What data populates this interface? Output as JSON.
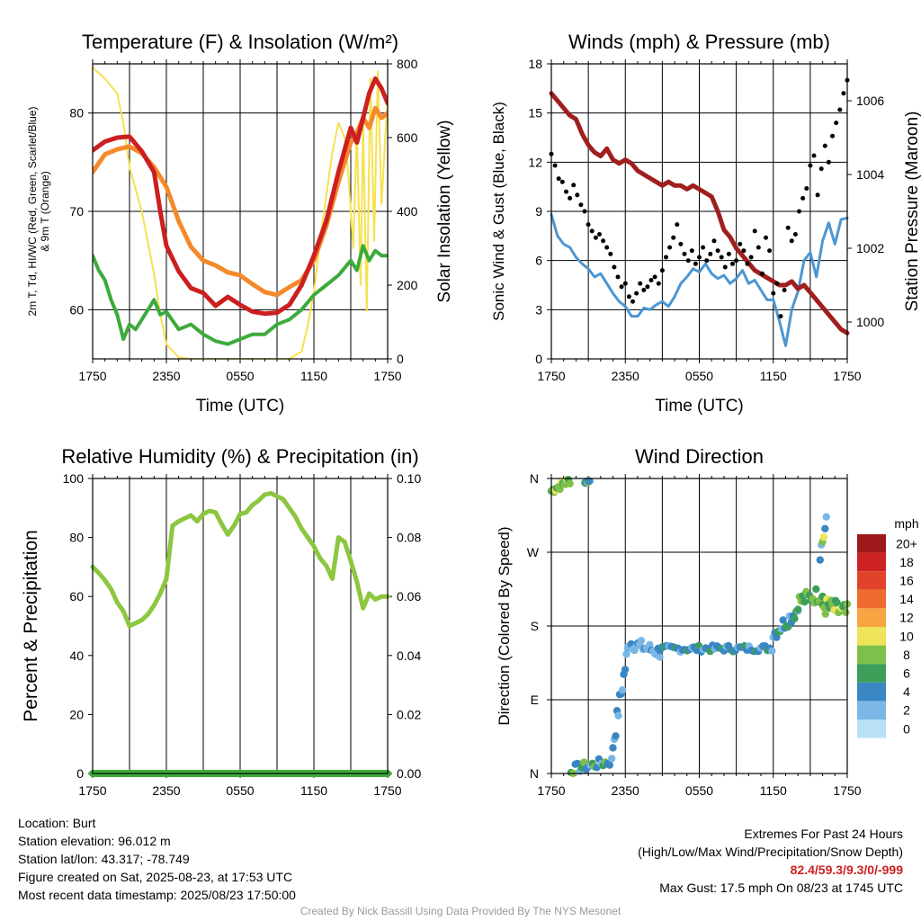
{
  "colors": {
    "red": "#cc1f1f",
    "green": "#3cab3c",
    "orange": "#f5892b",
    "yellow": "#f7e14e",
    "maroon": "#a01e1e",
    "blue": "#4d96d1",
    "black": "#000000",
    "rh": "#8dc63f",
    "precip": "#3cab3c"
  },
  "chart_data": [
    {
      "id": "temp",
      "type": "line",
      "title": "Temperature (F) & Insolation (W/m²)",
      "xlabel": "Time (UTC)",
      "ylabel_lines": [
        "2m T, Td, HI/WC (Red, Green, Scarlet/Blue)",
        "& 9m T (Orange)"
      ],
      "ylabel2": "Solar Insolation (Yellow)",
      "xtick_labels": [
        "1750",
        "2350",
        "0550",
        "1150",
        "1750"
      ],
      "xlim": [
        0,
        24
      ],
      "ylim": [
        55,
        85
      ],
      "yticks": [
        60,
        70,
        80
      ],
      "y2lim": [
        0,
        800
      ],
      "y2ticks": [
        0,
        200,
        400,
        600,
        800
      ],
      "series": [
        {
          "color": "red",
          "axis": "left",
          "width": 5,
          "x": [
            0,
            1,
            2,
            3,
            4,
            5,
            5.5,
            6,
            7,
            8,
            9,
            10,
            11,
            12,
            13,
            14,
            15,
            16,
            17,
            18,
            19,
            20,
            21,
            21.5,
            22,
            22.5,
            23,
            23.5,
            24
          ],
          "y": [
            76.2,
            77.1,
            77.5,
            77.6,
            76.1,
            74.0,
            70.0,
            66.5,
            63.9,
            62.2,
            61.7,
            60.4,
            61.3,
            60.5,
            59.8,
            59.6,
            59.7,
            60.5,
            62.5,
            65.5,
            69.0,
            74.0,
            78.5,
            77.0,
            79.5,
            82.0,
            83.5,
            82.5,
            81.0
          ]
        },
        {
          "color": "orange",
          "axis": "left",
          "width": 5,
          "x": [
            0,
            1,
            2,
            3,
            4,
            5,
            6,
            7,
            8,
            9,
            10,
            11,
            12,
            13,
            14,
            15,
            16,
            17,
            18,
            19,
            20,
            21,
            21.5,
            22,
            22.5,
            23,
            23.5,
            24
          ],
          "y": [
            74.0,
            75.8,
            76.3,
            76.6,
            75.9,
            74.5,
            72.5,
            69.0,
            66.4,
            65.0,
            64.5,
            63.8,
            63.5,
            62.6,
            61.8,
            61.5,
            62.3,
            63.0,
            65.0,
            68.5,
            73.0,
            77.0,
            78.0,
            79.5,
            78.5,
            80.5,
            79.5,
            80.0
          ]
        },
        {
          "color": "green",
          "axis": "left",
          "width": 4,
          "x": [
            0,
            0.5,
            1,
            1.5,
            2,
            2.5,
            3,
            3.5,
            4,
            5,
            5.5,
            6,
            7,
            8,
            9,
            10,
            11,
            12,
            13,
            14,
            15,
            16,
            17,
            18,
            19,
            20,
            21,
            21.5,
            22,
            22.5,
            23,
            23.5,
            24
          ],
          "y": [
            65.5,
            64.0,
            63.0,
            61.0,
            59.5,
            57.0,
            58.5,
            58.0,
            59.0,
            61.0,
            59.5,
            59.8,
            58.0,
            58.5,
            57.5,
            56.8,
            56.5,
            57.0,
            57.5,
            57.5,
            58.5,
            59.0,
            60.0,
            61.5,
            62.5,
            63.5,
            65.0,
            64.0,
            66.5,
            65.0,
            66.0,
            65.5,
            65.5
          ]
        },
        {
          "color": "yellow",
          "axis": "right",
          "width": 2,
          "x": [
            0,
            1,
            2,
            2.5,
            3,
            4,
            5,
            5.5,
            6,
            7,
            8,
            9,
            10,
            11,
            12,
            13,
            14,
            15,
            16,
            17,
            17.5,
            18,
            18.5,
            19,
            19.5,
            20,
            20.5,
            20.8,
            21.2,
            21.5,
            21.8,
            22,
            22.3,
            22.6,
            22.9,
            23.2,
            23.5,
            23.8,
            24
          ],
          "y": [
            790,
            760,
            720,
            640,
            520,
            400,
            230,
            120,
            40,
            4,
            0,
            0,
            0,
            0,
            0,
            0,
            0,
            0,
            0,
            20,
            90,
            180,
            320,
            440,
            560,
            640,
            600,
            500,
            300,
            620,
            200,
            640,
            130,
            760,
            320,
            780,
            420,
            600,
            700
          ]
        }
      ]
    },
    {
      "id": "wind",
      "type": "line",
      "title": "Winds (mph) & Pressure (mb)",
      "xlabel": "Time (UTC)",
      "ylabel": "Sonic Wind & Gust (Blue, Black)",
      "ylabel2": "Station Pressure (Maroon)",
      "xtick_labels": [
        "1750",
        "2350",
        "0550",
        "1150",
        "1750"
      ],
      "xlim": [
        0,
        24
      ],
      "ylim": [
        0,
        18
      ],
      "yticks": [
        0,
        3,
        6,
        9,
        12,
        15,
        18
      ],
      "y2lim": [
        999.0,
        1007.0
      ],
      "y2ticks": [
        1000,
        1002,
        1004,
        1006
      ],
      "series": [
        {
          "color": "blue",
          "axis": "left",
          "width": 3,
          "x": [
            0,
            0.5,
            1,
            1.5,
            2,
            2.5,
            3,
            3.5,
            4,
            4.5,
            5,
            5.5,
            6,
            6.5,
            7,
            7.5,
            8,
            8.5,
            9,
            9.5,
            10,
            10.5,
            11,
            11.5,
            12,
            12.5,
            13,
            13.5,
            14,
            14.5,
            15,
            15.5,
            16,
            16.5,
            17,
            17.5,
            18,
            18.5,
            19,
            19.5,
            20,
            20.5,
            21,
            21.5,
            22,
            22.5,
            23,
            23.5,
            24
          ],
          "y": [
            8.8,
            7.5,
            7.0,
            6.8,
            6.2,
            5.8,
            5.5,
            5.0,
            5.2,
            4.6,
            4.0,
            3.5,
            3.2,
            2.6,
            2.6,
            3.1,
            3.0,
            3.3,
            3.5,
            3.2,
            3.8,
            4.6,
            5.0,
            5.5,
            5.3,
            5.8,
            5.2,
            4.9,
            5.1,
            4.6,
            4.9,
            5.4,
            4.6,
            4.8,
            4.2,
            3.6,
            3.6,
            2.3,
            0.8,
            3.0,
            4.1,
            6.0,
            6.5,
            5.0,
            7.2,
            8.3,
            7.0,
            8.5,
            8.6
          ]
        },
        {
          "color": "maroon",
          "axis": "right",
          "width": 5,
          "x": [
            0,
            0.5,
            1,
            1.5,
            2,
            2.5,
            3,
            3.5,
            4,
            4.5,
            5,
            5.5,
            6,
            6.5,
            7,
            7.5,
            8,
            8.5,
            9,
            9.5,
            10,
            10.5,
            11,
            11.5,
            12,
            12.5,
            13,
            13.5,
            14,
            14.5,
            15,
            15.5,
            16,
            16.5,
            17,
            17.5,
            18,
            18.5,
            19,
            19.5,
            20,
            20.5,
            21,
            21.5,
            22,
            22.5,
            23,
            23.5,
            24
          ],
          "y": [
            1006.2,
            1006.0,
            1005.8,
            1005.6,
            1005.5,
            1005.1,
            1004.8,
            1004.6,
            1004.5,
            1004.7,
            1004.4,
            1004.3,
            1004.4,
            1004.3,
            1004.1,
            1004.0,
            1003.9,
            1003.8,
            1003.7,
            1003.8,
            1003.7,
            1003.7,
            1003.6,
            1003.7,
            1003.6,
            1003.5,
            1003.4,
            1003.0,
            1002.5,
            1002.3,
            1002.0,
            1001.8,
            1001.6,
            1001.4,
            1001.3,
            1001.2,
            1001.1,
            1001.0,
            1001.0,
            1001.1,
            1000.9,
            1001.0,
            1000.8,
            1000.6,
            1000.4,
            1000.2,
            1000.0,
            999.8,
            999.7
          ]
        },
        {
          "color": "black",
          "axis": "left",
          "marker": "dot",
          "r": 2.5,
          "x": [
            0,
            0.3,
            0.6,
            0.9,
            1.2,
            1.5,
            1.8,
            2.1,
            2.4,
            2.7,
            3,
            3.3,
            3.6,
            3.9,
            4.2,
            4.5,
            4.8,
            5.1,
            5.4,
            5.7,
            6,
            6.3,
            6.6,
            6.9,
            7.2,
            7.5,
            7.8,
            8.1,
            8.4,
            8.7,
            9,
            9.3,
            9.6,
            9.9,
            10.2,
            10.5,
            10.8,
            11.1,
            11.4,
            11.7,
            12,
            12.3,
            12.6,
            12.9,
            13.2,
            13.5,
            13.8,
            14.1,
            14.4,
            14.7,
            15,
            15.3,
            15.6,
            15.9,
            16.2,
            16.5,
            16.8,
            17.1,
            17.4,
            17.7,
            18,
            18.3,
            18.6,
            18.9,
            19.2,
            19.5,
            19.8,
            20.1,
            20.4,
            20.7,
            21,
            21.3,
            21.6,
            21.9,
            22.2,
            22.5,
            22.8,
            23.1,
            23.4,
            23.7,
            24
          ],
          "y": [
            12.5,
            11.8,
            11.0,
            10.8,
            10.2,
            9.8,
            10.6,
            10.0,
            9.4,
            9.0,
            8.2,
            7.8,
            7.4,
            7.6,
            7.2,
            6.8,
            6.4,
            5.6,
            5.0,
            4.4,
            4.6,
            3.8,
            3.5,
            4.0,
            4.6,
            4.2,
            4.4,
            4.8,
            5.0,
            4.6,
            5.4,
            6.2,
            6.8,
            7.4,
            8.2,
            7.0,
            6.4,
            6.0,
            6.6,
            5.8,
            6.2,
            6.8,
            6.0,
            6.4,
            7.2,
            6.6,
            6.2,
            5.6,
            6.4,
            5.8,
            6.0,
            7.0,
            6.6,
            5.8,
            6.2,
            7.8,
            6.8,
            5.2,
            7.4,
            6.6,
            4.0,
            4.6,
            2.6,
            4.2,
            8.0,
            7.2,
            7.6,
            9.0,
            9.8,
            10.4,
            11.8,
            12.4,
            10.0,
            11.6,
            13.0,
            12.0,
            13.6,
            14.4,
            15.2,
            16.2,
            17.0
          ]
        }
      ]
    },
    {
      "id": "rh",
      "type": "line",
      "title": "Relative Humidity (%) & Precipitation (in)",
      "xlabel": "",
      "ylabel": "Percent & Precipitation",
      "xtick_labels": [
        "1750",
        "2350",
        "0550",
        "1150",
        "1750"
      ],
      "xlim": [
        0,
        24
      ],
      "ylim": [
        0,
        100
      ],
      "yticks": [
        0,
        20,
        40,
        60,
        80,
        100
      ],
      "y2lim": [
        0,
        0.1
      ],
      "y2ticks": [
        "0.00",
        "0.02",
        "0.04",
        "0.06",
        "0.08",
        "0.10"
      ],
      "series": [
        {
          "color": "rh",
          "axis": "left",
          "width": 5,
          "x": [
            0,
            0.5,
            1,
            1.5,
            2,
            2.5,
            3,
            3.5,
            4,
            4.5,
            5,
            5.5,
            6,
            6.5,
            7,
            7.5,
            8,
            8.5,
            9,
            9.5,
            10,
            10.5,
            11,
            11.5,
            12,
            12.5,
            13,
            13.5,
            14,
            14.5,
            15,
            15.5,
            16,
            16.5,
            17,
            17.5,
            18,
            18.5,
            19,
            19.5,
            20,
            20.5,
            21,
            21.5,
            22,
            22.5,
            23,
            23.5,
            24
          ],
          "y": [
            70.0,
            68.0,
            65.5,
            62.5,
            58.0,
            55.0,
            50.0,
            51.0,
            52.0,
            54.0,
            57.0,
            61.0,
            66.0,
            84.0,
            85.5,
            86.5,
            87.5,
            85.5,
            88.0,
            89.0,
            88.5,
            84.5,
            81.0,
            84.0,
            88.0,
            88.5,
            91.0,
            92.5,
            94.5,
            95.0,
            94.0,
            93.0,
            90.0,
            87.0,
            83.0,
            80.0,
            77.0,
            73.0,
            70.5,
            66.0,
            80.0,
            78.5,
            72.0,
            65.0,
            56.0,
            61.0,
            59.0,
            60.0,
            60.0
          ]
        },
        {
          "color": "precip",
          "axis": "right",
          "width": 8,
          "x": [
            0,
            24
          ],
          "y": [
            0,
            0
          ]
        }
      ]
    },
    {
      "id": "wdir",
      "type": "scatter",
      "title": "Wind Direction",
      "ylabel": "Direction (Colored By Speed)",
      "xtick_labels": [
        "1750",
        "2350",
        "0550",
        "1150",
        "1750"
      ],
      "ytick_labels": [
        "N",
        "E",
        "S",
        "W",
        "N"
      ],
      "xlim": [
        0,
        24
      ],
      "ylim": [
        0,
        360
      ],
      "legend": {
        "title": "mph",
        "labels": [
          "20+",
          "18",
          "16",
          "14",
          "12",
          "10",
          "8",
          "6",
          "4",
          "2",
          "0"
        ],
        "colors": [
          "#9e1a1a",
          "#cc2222",
          "#e0432a",
          "#f06b30",
          "#f9a443",
          "#eee45a",
          "#7fc04a",
          "#3d9e5a",
          "#3a86c3",
          "#7ab7e6",
          "#b9e1f6"
        ]
      },
      "segments": [
        {
          "x0": 0.0,
          "x1": 1.5,
          "y0": 345,
          "y1": 358,
          "n": 14,
          "j": 5,
          "s": [
            6,
            8,
            7,
            9
          ]
        },
        {
          "x0": 2.7,
          "x1": 3.1,
          "y0": 355,
          "y1": 357,
          "n": 6,
          "j": 2,
          "s": [
            7,
            4,
            3
          ]
        },
        {
          "x0": 1.6,
          "x1": 4.9,
          "y0": 5,
          "y1": 15,
          "n": 20,
          "j": 6,
          "s": [
            6,
            7,
            3,
            4,
            2
          ]
        },
        {
          "x0": 5.0,
          "x1": 6.2,
          "y0": 35,
          "y1": 150,
          "n": 12,
          "j": 12,
          "s": [
            3,
            2,
            4
          ]
        },
        {
          "x0": 6.2,
          "x1": 8.8,
          "y0": 160,
          "y1": 148,
          "n": 20,
          "j": 8,
          "s": [
            2,
            1,
            3,
            2
          ]
        },
        {
          "x0": 8.8,
          "x1": 17.9,
          "y0": 152,
          "y1": 153,
          "n": 50,
          "j": 4,
          "s": [
            4,
            3,
            5,
            4,
            2
          ]
        },
        {
          "x0": 18.0,
          "x1": 20.0,
          "y0": 170,
          "y1": 200,
          "n": 16,
          "j": 9,
          "s": [
            2,
            3,
            4,
            5,
            6
          ]
        },
        {
          "x0": 20.0,
          "x1": 22.0,
          "y0": 210,
          "y1": 220,
          "n": 16,
          "j": 10,
          "s": [
            5,
            7,
            8,
            6
          ]
        },
        {
          "x0": 21.8,
          "x1": 22.3,
          "y0": 270,
          "y1": 305,
          "n": 6,
          "j": 10,
          "s": [
            4,
            2,
            8,
            9
          ]
        },
        {
          "x0": 22.0,
          "x1": 24.0,
          "y0": 205,
          "y1": 195,
          "n": 18,
          "j": 12,
          "s": [
            6,
            8,
            7,
            9,
            5
          ]
        }
      ]
    }
  ],
  "info_left": [
    "Location: Burt",
    "Station elevation: 96.012 m",
    "Station lat/lon: 43.317; -78.749",
    "Figure created on Sat, 2025-08-23, at 17:53 UTC",
    "Most recent data timestamp: 2025/08/23 17:50:00"
  ],
  "info_right": {
    "line1": "Extremes For Past 24 Hours",
    "line2": "(High/Low/Max Wind/Precipitation/Snow Depth)",
    "extremes": "82.4/59.3/9.3/0/-999",
    "gust": "Max Gust: 17.5 mph On 08/23 at 1745 UTC"
  },
  "credit": "Created By Nick Bassill Using Data Provided By The NYS Mesonet"
}
